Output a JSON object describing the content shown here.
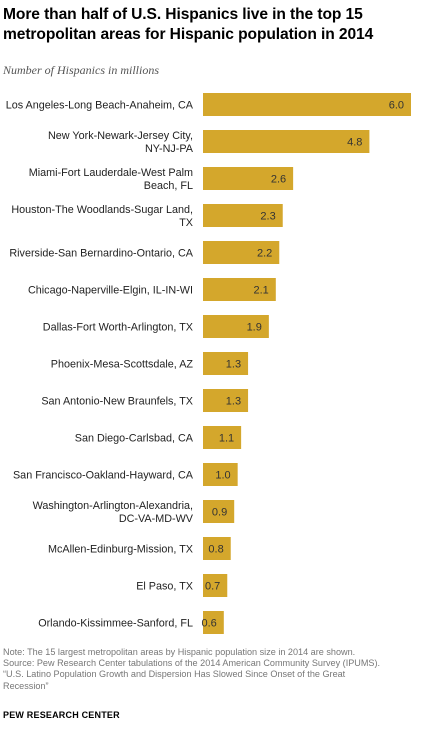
{
  "chart_data": {
    "type": "bar",
    "orientation": "horizontal",
    "title": "More than half of U.S. Hispanics live in the top 15 metropolitan areas for Hispanic population in 2014",
    "subtitle": "Number of Hispanics in millions",
    "categories": [
      [
        "Los Angeles-Long Beach-Anaheim, CA"
      ],
      [
        "New York-Newark-Jersey City,",
        "NY-NJ-PA"
      ],
      [
        "Miami-Fort Lauderdale-West Palm",
        "Beach, FL"
      ],
      [
        "Houston-The Woodlands-Sugar Land,",
        "TX"
      ],
      [
        "Riverside-San Bernardino-Ontario, CA"
      ],
      [
        "Chicago-Naperville-Elgin, IL-IN-WI"
      ],
      [
        "Dallas-Fort Worth-Arlington, TX"
      ],
      [
        "Phoenix-Mesa-Scottsdale, AZ"
      ],
      [
        "San Antonio-New Braunfels, TX"
      ],
      [
        "San Diego-Carlsbad, CA"
      ],
      [
        "San Francisco-Oakland-Hayward, CA"
      ],
      [
        "Washington-Arlington-Alexandria,",
        "DC-VA-MD-WV"
      ],
      [
        "McAllen-Edinburg-Mission, TX"
      ],
      [
        "El Paso, TX"
      ],
      [
        "Orlando-Kissimmee-Sanford, FL"
      ]
    ],
    "values": [
      6.0,
      4.8,
      2.6,
      2.3,
      2.2,
      2.1,
      1.9,
      1.3,
      1.3,
      1.1,
      1.0,
      0.9,
      0.8,
      0.7,
      0.6
    ],
    "value_labels": [
      "6.0",
      "4.8",
      "2.6",
      "2.3",
      "2.2",
      "2.1",
      "1.9",
      "1.3",
      "1.3",
      "1.1",
      "1.0",
      "0.9",
      "0.8",
      "0.7",
      "0.6"
    ],
    "xlim": [
      0,
      6.0
    ],
    "grid": false,
    "legend": "none",
    "bar_color": "#d4a72c"
  },
  "footer": {
    "note": "Note: The 15 largest metropolitan areas by Hispanic population size in 2014 are shown.",
    "source_lines": [
      "Source: Pew Research Center tabulations of the 2014 American Community Survey (IPUMS).",
      "“U.S. Latino Population Growth and Dispersion Has Slowed Since Onset of the Great",
      "Recession”"
    ],
    "brand": "PEW RESEARCH CENTER"
  }
}
